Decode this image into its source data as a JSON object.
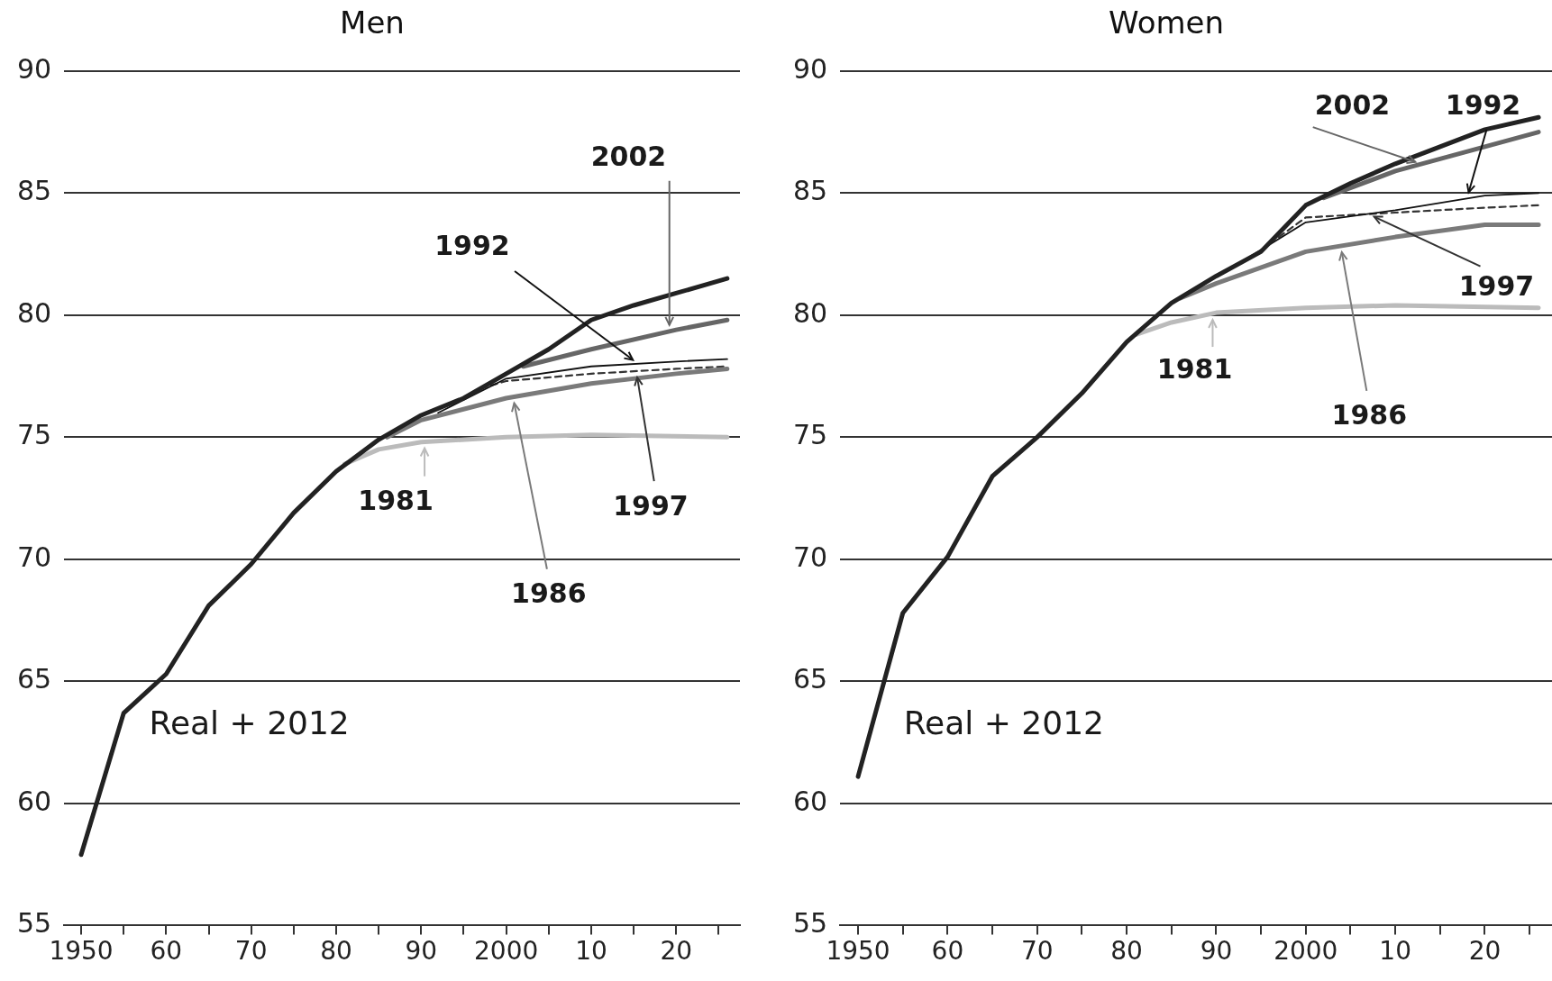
{
  "chart_data": [
    {
      "type": "line",
      "title": "Men",
      "xlim": [
        1948,
        2027.5
      ],
      "ylim": [
        55,
        90
      ],
      "xticks": [
        {
          "value": 1950,
          "label": "1950"
        },
        {
          "value": 1955,
          "label": null
        },
        {
          "value": 1960,
          "label": "60"
        },
        {
          "value": 1965,
          "label": null
        },
        {
          "value": 1970,
          "label": "70"
        },
        {
          "value": 1975,
          "label": null
        },
        {
          "value": 1980,
          "label": "80"
        },
        {
          "value": 1985,
          "label": null
        },
        {
          "value": 1990,
          "label": "90"
        },
        {
          "value": 1995,
          "label": null
        },
        {
          "value": 2000,
          "label": "2000"
        },
        {
          "value": 2005,
          "label": null
        },
        {
          "value": 2010,
          "label": "10"
        },
        {
          "value": 2015,
          "label": null
        },
        {
          "value": 2020,
          "label": "20"
        },
        {
          "value": 2025,
          "label": null
        }
      ],
      "yticks": [
        55,
        60,
        65,
        70,
        75,
        80,
        85,
        90
      ],
      "grid": "y",
      "marker": "none",
      "series": [
        {
          "name": "Real + 2012",
          "color": "#222222",
          "x": [
            1950,
            1955,
            1960,
            1965,
            1970,
            1975,
            1980,
            1985,
            1990,
            1995,
            2000,
            2005,
            2010,
            2015,
            2020,
            2026
          ],
          "values": [
            57.9,
            63.7,
            65.3,
            68.1,
            69.8,
            71.9,
            73.6,
            74.9,
            75.9,
            76.6,
            77.6,
            78.6,
            79.8,
            80.4,
            80.9,
            81.5
          ]
        },
        {
          "name": "1981",
          "color": "#bbbbbb",
          "x": [
            1981,
            1985,
            1990,
            2000,
            2010,
            2026
          ],
          "values": [
            73.9,
            74.5,
            74.8,
            75.0,
            75.1,
            75.0
          ]
        },
        {
          "name": "1986",
          "color": "#7a7a7a",
          "x": [
            1986,
            1990,
            2000,
            2010,
            2020,
            2026
          ],
          "values": [
            75.0,
            75.7,
            76.6,
            77.2,
            77.6,
            77.8
          ]
        },
        {
          "name": "1992",
          "color": "#111111",
          "x": [
            1992,
            2000,
            2010,
            2020,
            2026
          ],
          "values": [
            76.0,
            77.4,
            77.9,
            78.1,
            78.2
          ]
        },
        {
          "name": "1997",
          "color": "#333333",
          "line_style": "dashed",
          "x": [
            1997,
            2000,
            2010,
            2020,
            2026
          ],
          "values": [
            77.0,
            77.3,
            77.6,
            77.8,
            77.9
          ]
        },
        {
          "name": "2002",
          "color": "#666666",
          "x": [
            2002,
            2010,
            2020,
            2026
          ],
          "values": [
            77.9,
            78.6,
            79.4,
            79.8
          ]
        }
      ]
    },
    {
      "type": "line",
      "title": "Women",
      "xlim": [
        1948,
        2027.5
      ],
      "ylim": [
        55,
        90
      ],
      "xticks": [
        {
          "value": 1950,
          "label": "1950"
        },
        {
          "value": 1955,
          "label": null
        },
        {
          "value": 1960,
          "label": "60"
        },
        {
          "value": 1965,
          "label": null
        },
        {
          "value": 1970,
          "label": "70"
        },
        {
          "value": 1975,
          "label": null
        },
        {
          "value": 1980,
          "label": "80"
        },
        {
          "value": 1985,
          "label": null
        },
        {
          "value": 1990,
          "label": "90"
        },
        {
          "value": 1995,
          "label": null
        },
        {
          "value": 2000,
          "label": "2000"
        },
        {
          "value": 2005,
          "label": null
        },
        {
          "value": 2010,
          "label": "10"
        },
        {
          "value": 2015,
          "label": null
        },
        {
          "value": 2020,
          "label": "20"
        },
        {
          "value": 2025,
          "label": null
        }
      ],
      "yticks": [
        55,
        60,
        65,
        70,
        75,
        80,
        85,
        90
      ],
      "grid": "y",
      "marker": "none",
      "series": [
        {
          "name": "Real + 2012",
          "color": "#222222",
          "x": [
            1950,
            1955,
            1960,
            1965,
            1970,
            1975,
            1980,
            1985,
            1990,
            1995,
            2000,
            2005,
            2010,
            2015,
            2020,
            2026
          ],
          "values": [
            61.1,
            67.8,
            70.1,
            73.4,
            75.0,
            76.8,
            78.9,
            80.5,
            81.6,
            82.6,
            84.5,
            85.4,
            86.2,
            86.9,
            87.6,
            88.1
          ]
        },
        {
          "name": "1981",
          "color": "#bbbbbb",
          "x": [
            1981,
            1985,
            1990,
            2000,
            2010,
            2026
          ],
          "values": [
            79.2,
            79.7,
            80.1,
            80.3,
            80.4,
            80.3
          ]
        },
        {
          "name": "1986",
          "color": "#7a7a7a",
          "x": [
            1986,
            1990,
            2000,
            2010,
            2020,
            2026
          ],
          "values": [
            80.7,
            81.3,
            82.6,
            83.2,
            83.7,
            83.7
          ]
        },
        {
          "name": "1992",
          "color": "#111111",
          "x": [
            1992,
            2000,
            2010,
            2020,
            2026
          ],
          "values": [
            82.0,
            83.8,
            84.3,
            84.9,
            85.0
          ]
        },
        {
          "name": "1997",
          "color": "#333333",
          "line_style": "dashed",
          "x": [
            1997,
            2000,
            2010,
            2020,
            2026
          ],
          "values": [
            83.2,
            84.0,
            84.2,
            84.4,
            84.5
          ]
        },
        {
          "name": "2002",
          "color": "#666666",
          "x": [
            2002,
            2010,
            2020,
            2026
          ],
          "values": [
            84.8,
            85.9,
            86.9,
            87.5
          ]
        }
      ]
    }
  ]
}
